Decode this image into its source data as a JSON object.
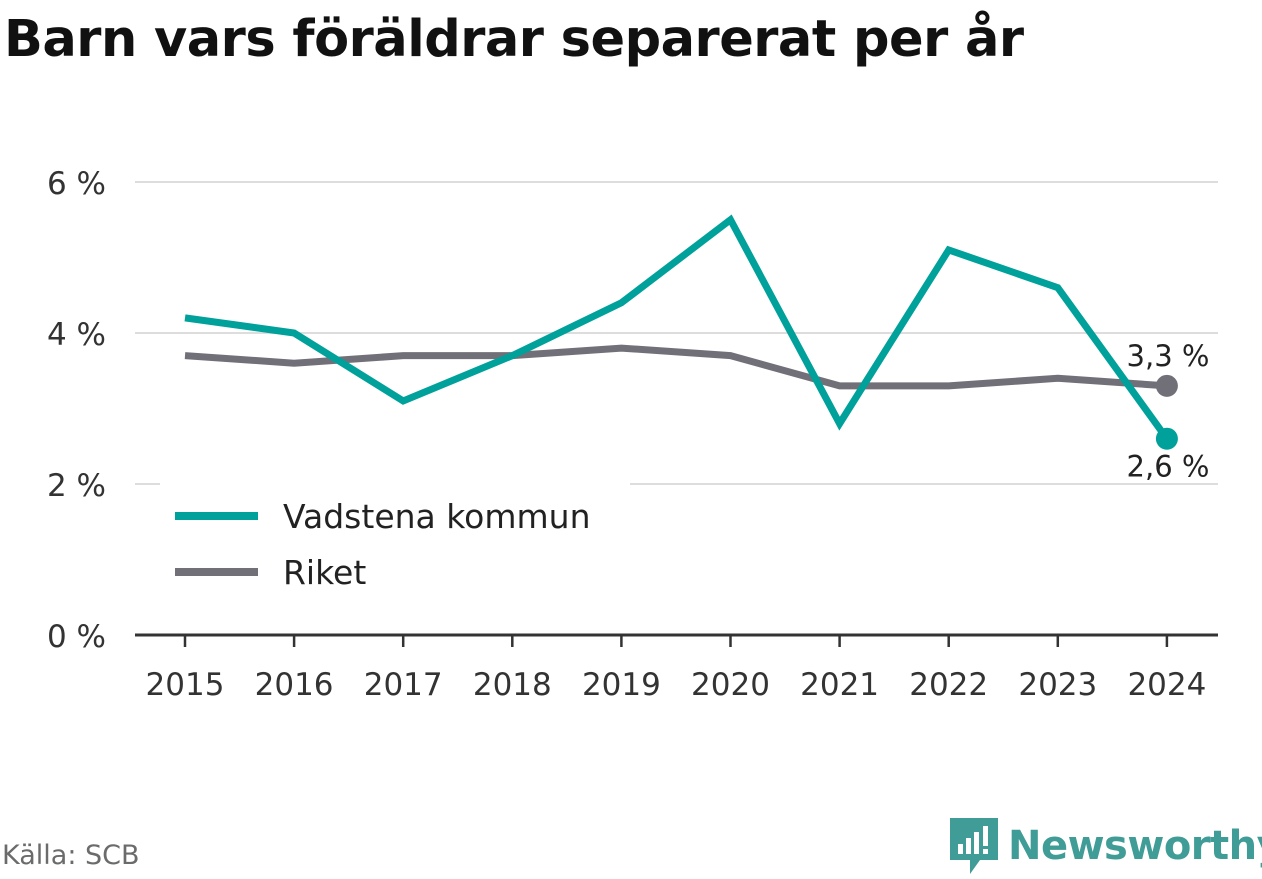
{
  "chart_data": {
    "type": "line",
    "title": "Barn vars föräldrar separerat per år",
    "x": [
      "2015",
      "2016",
      "2017",
      "2018",
      "2019",
      "2020",
      "2021",
      "2022",
      "2023",
      "2024"
    ],
    "series": [
      {
        "name": "Vadstena kommun",
        "color": "#00a19a",
        "values": [
          4.2,
          4.0,
          3.1,
          3.7,
          4.4,
          5.5,
          2.8,
          5.1,
          4.6,
          2.6
        ],
        "end_label": "2,6 %"
      },
      {
        "name": "Riket",
        "color": "#717078",
        "values": [
          3.7,
          3.6,
          3.7,
          3.7,
          3.8,
          3.7,
          3.3,
          3.3,
          3.4,
          3.3
        ],
        "end_label": "3,3 %"
      }
    ],
    "yticks": [
      {
        "value": 0,
        "label": "0 %"
      },
      {
        "value": 2,
        "label": "2 %"
      },
      {
        "value": 4,
        "label": "4 %"
      },
      {
        "value": 6,
        "label": "6 %"
      }
    ],
    "ylim": [
      0,
      6
    ],
    "grid": true,
    "legend_position": "bottom-left"
  },
  "source": "Källa: SCB",
  "brand": {
    "name": "Newsworthy",
    "icon": "bar-chart-bubble-icon",
    "color": "#3f9c96"
  }
}
